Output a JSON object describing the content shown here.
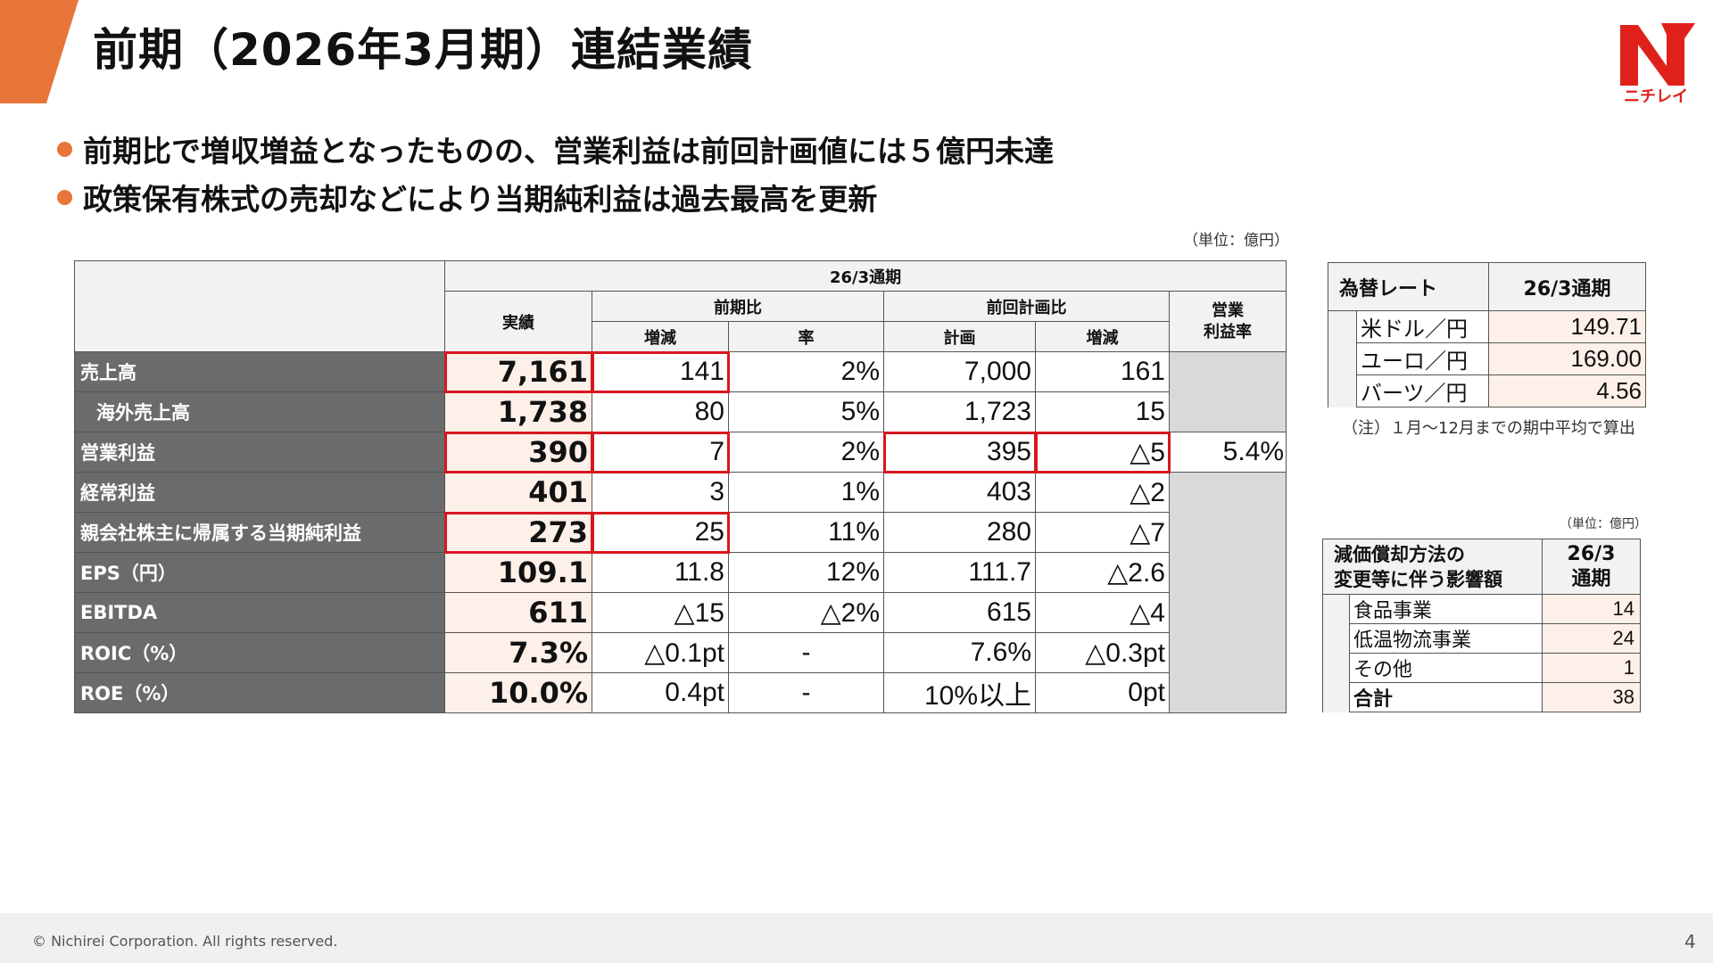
{
  "header": {
    "title": "前期（2026年3月期）連結業績",
    "accent_color": "#e8753a",
    "logo_text": "ニチレイ",
    "logo_letter": "N"
  },
  "bullets": [
    "前期比で増収増益となったものの、営業利益は前回計画値には５億円未達",
    "政策保有株式の売却などにより当期純利益は過去最高を更新"
  ],
  "main_table": {
    "unit": "（単位：億円）",
    "period_header": "26/3通期",
    "col_actual": "実績",
    "col_yoy": "前期比",
    "col_yoy_change": "増減",
    "col_yoy_rate": "率",
    "col_plan_group": "前回計画比",
    "col_plan": "計画",
    "col_plan_change": "増減",
    "col_margin": "営業\n利益率",
    "rows": [
      {
        "label": "売上高",
        "actual": "7,161",
        "yoy_change": "141",
        "yoy_rate": "2%",
        "plan": "7,000",
        "plan_change": "161"
      },
      {
        "label": "海外売上高",
        "actual": "1,738",
        "yoy_change": "80",
        "yoy_rate": "5%",
        "plan": "1,723",
        "plan_change": "15"
      },
      {
        "label": "営業利益",
        "actual": "390",
        "yoy_change": "7",
        "yoy_rate": "2%",
        "plan": "395",
        "plan_change": "△5",
        "margin": "5.4%"
      },
      {
        "label": "経常利益",
        "actual": "401",
        "yoy_change": "3",
        "yoy_rate": "1%",
        "plan": "403",
        "plan_change": "△2"
      },
      {
        "label": "親会社株主に帰属する当期純利益",
        "actual": "273",
        "yoy_change": "25",
        "yoy_rate": "11%",
        "plan": "280",
        "plan_change": "△7"
      },
      {
        "label": "EPS（円）",
        "actual": "109.1",
        "yoy_change": "11.8",
        "yoy_rate": "12%",
        "plan": "111.7",
        "plan_change": "△2.6"
      },
      {
        "label": "EBITDA",
        "actual": "611",
        "yoy_change": "△15",
        "yoy_rate": "△2%",
        "plan": "615",
        "plan_change": "△4"
      },
      {
        "label": "ROIC（%）",
        "actual": "7.3%",
        "yoy_change": "△0.1pt",
        "yoy_rate": "-",
        "plan": "7.6%",
        "plan_change": "△0.3pt"
      },
      {
        "label": "ROE（%）",
        "actual": "10.0%",
        "yoy_change": "0.4pt",
        "yoy_rate": "-",
        "plan": "10%以上",
        "plan_change": "0pt"
      }
    ],
    "highlight_color": "#d9161f"
  },
  "fx_table": {
    "header_label": "為替レート",
    "header_period": "26/3通期",
    "rows": [
      {
        "label": "米ドル／円",
        "value": "149.71"
      },
      {
        "label": "ユーロ／円",
        "value": "169.00"
      },
      {
        "label": "バーツ／円",
        "value": "4.56"
      }
    ],
    "note": "（注）１月〜12月までの期中平均で算出"
  },
  "dep_table": {
    "unit": "（単位：億円）",
    "header_label_1": "減価償却方法の",
    "header_label_2": "変更等に伴う影響額",
    "header_period_1": "26/3",
    "header_period_2": "通期",
    "rows": [
      {
        "label": "食品事業",
        "value": "14"
      },
      {
        "label": "低温物流事業",
        "value": "24"
      },
      {
        "label": "その他",
        "value": "1"
      },
      {
        "label": "合計",
        "value": "38"
      }
    ]
  },
  "footer": {
    "copyright": "© Nichirei Corporation. All rights reserved.",
    "page_number": "4"
  }
}
